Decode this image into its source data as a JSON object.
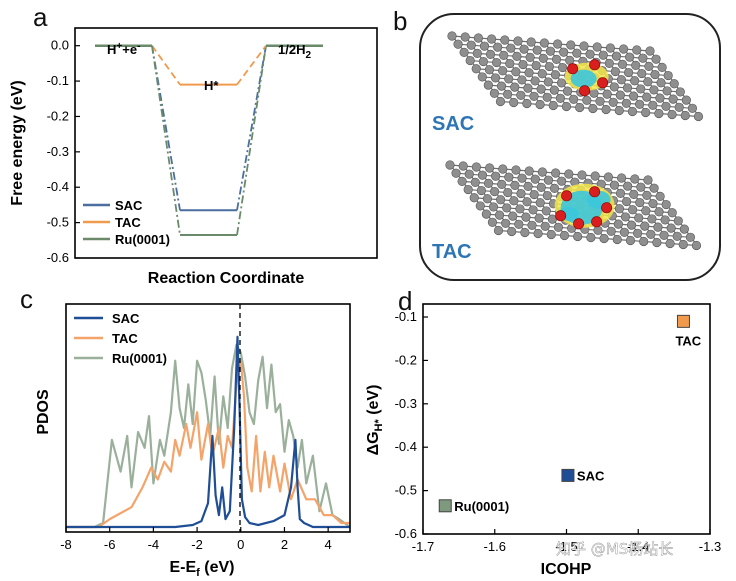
{
  "panels": {
    "a": "a",
    "b": "b",
    "c": "c",
    "d": "d"
  },
  "watermark": "知乎 @MS杨站长",
  "colors": {
    "SAC": "#4a6f9e",
    "TAC": "#f09a4e",
    "Ru": "#6a8a6a",
    "Ru_marker": "#7f997f",
    "SAC_pdos": "#1f4e96",
    "TAC_pdos": "#f4a46a",
    "Ru_pdos": "#9bb09b"
  },
  "chart_data": [
    {
      "id": "a",
      "type": "line",
      "ylabel": "Free energy (eV)",
      "xlabel": "Reaction Coordinate",
      "ylim": [
        -0.6,
        0.05
      ],
      "yticks": [
        0.0,
        -0.1,
        -0.2,
        -0.3,
        -0.4,
        -0.5,
        -0.6
      ],
      "ytick_labels": [
        "0.0",
        "-0.1",
        "-0.2",
        "-0.3",
        "-0.4",
        "-0.5",
        "-0.6"
      ],
      "states": [
        "H⁺+e⁻",
        "H*",
        "1/2H₂"
      ],
      "state_labels": {
        "start_main": "H",
        "start_sup1": "+",
        "start_mid": "+e",
        "start_sup2": "-",
        "mid": "H*",
        "end_main": "1/2H",
        "end_sub": "2"
      },
      "series": [
        {
          "name": "SAC",
          "values": [
            0.0,
            -0.465,
            0.0
          ]
        },
        {
          "name": "TAC",
          "values": [
            0.0,
            -0.11,
            0.0
          ]
        },
        {
          "name": "Ru(0001)",
          "values": [
            0.0,
            -0.535,
            0.0
          ]
        }
      ],
      "legend": [
        "SAC",
        "TAC",
        "Ru(0001)"
      ],
      "legend_position": "bottom-left"
    },
    {
      "id": "c",
      "type": "line",
      "xlabel_main": "E-E",
      "xlabel_sub": "f",
      "xlabel_unit": " (eV)",
      "ylabel": "PDOS",
      "xlim": [
        -8,
        5
      ],
      "xticks": [
        -8,
        -6,
        -4,
        -2,
        0,
        2,
        4
      ],
      "xtick_labels": [
        "-8",
        "-6",
        "-4",
        "-2",
        "0",
        "2",
        "4"
      ],
      "series": [
        {
          "name": "SAC",
          "x": [
            -8,
            -3,
            -2.2,
            -1.8,
            -1.5,
            -1.3,
            -1.15,
            -1.0,
            -0.85,
            -0.7,
            -0.5,
            -0.3,
            -0.15,
            -0.05,
            0.05,
            0.2,
            0.4,
            0.8,
            1.5,
            2.0,
            2.3,
            2.5,
            2.6,
            2.7,
            2.9,
            3.3,
            5
          ],
          "y": [
            0,
            0,
            0.01,
            0.03,
            0.12,
            0.46,
            0.16,
            0.06,
            0.2,
            0.04,
            0.08,
            0.5,
            0.96,
            0.58,
            0.14,
            0.05,
            0.02,
            0.01,
            0.03,
            0.06,
            0.2,
            0.44,
            0.2,
            0.04,
            0.02,
            0,
            0
          ]
        },
        {
          "name": "TAC",
          "x": [
            -8,
            -6.5,
            -6,
            -5,
            -4.5,
            -4.1,
            -3.8,
            -3.5,
            -3.2,
            -3.0,
            -2.8,
            -2.5,
            -2.3,
            -2.0,
            -1.8,
            -1.5,
            -1.3,
            -1.0,
            -0.8,
            -0.6,
            -0.4,
            -0.2,
            0.0,
            0.15,
            0.3,
            0.5,
            0.7,
            0.9,
            1.1,
            1.3,
            1.5,
            1.8,
            2.0,
            2.3,
            2.6,
            3.0,
            3.4,
            3.8,
            4.2,
            4.6,
            5
          ],
          "y": [
            0,
            0,
            0.04,
            0.1,
            0.2,
            0.3,
            0.24,
            0.33,
            0.28,
            0.44,
            0.36,
            0.52,
            0.4,
            0.58,
            0.34,
            0.52,
            0.36,
            0.5,
            0.3,
            0.46,
            0.4,
            0.72,
            0.84,
            0.66,
            0.3,
            0.18,
            0.46,
            0.18,
            0.38,
            0.2,
            0.36,
            0.18,
            0.32,
            0.14,
            0.24,
            0.14,
            0.14,
            0.06,
            0.06,
            0.02,
            0.02
          ]
        },
        {
          "name": "Ru(0001)",
          "x": [
            -8,
            -6.7,
            -6.3,
            -5.9,
            -5.5,
            -5.2,
            -5.0,
            -4.7,
            -4.4,
            -4.2,
            -4.0,
            -3.7,
            -3.5,
            -3.2,
            -3.0,
            -2.8,
            -2.6,
            -2.4,
            -2.2,
            -2.0,
            -1.8,
            -1.6,
            -1.4,
            -1.2,
            -1.0,
            -0.8,
            -0.6,
            -0.4,
            -0.2,
            0.0,
            0.2,
            0.4,
            0.6,
            0.8,
            1.0,
            1.2,
            1.4,
            1.6,
            1.8,
            2.0,
            2.2,
            2.4,
            2.6,
            2.8,
            3.0,
            3.3,
            3.6,
            3.9,
            4.2,
            4.5,
            5
          ],
          "y": [
            0,
            0,
            0.02,
            0.44,
            0.28,
            0.46,
            0.2,
            0.48,
            0.4,
            0.56,
            0.22,
            0.44,
            0.36,
            0.58,
            0.84,
            0.6,
            0.5,
            0.72,
            0.52,
            0.84,
            0.78,
            0.64,
            0.46,
            0.76,
            0.42,
            0.66,
            0.5,
            0.8,
            0.92,
            0.88,
            0.76,
            0.58,
            0.52,
            0.74,
            0.86,
            0.6,
            0.82,
            0.58,
            0.62,
            0.38,
            0.54,
            0.46,
            0.3,
            0.44,
            0.22,
            0.36,
            0.08,
            0.22,
            0.06,
            0.04,
            0.0
          ]
        }
      ],
      "fermi_line_x": 0,
      "legend": [
        "SAC",
        "TAC",
        "Ru(0001)"
      ],
      "legend_position": "top-left"
    },
    {
      "id": "d",
      "type": "scatter",
      "xlabel": "ICOHP",
      "ylabel_main": "ΔG",
      "ylabel_sub": "H*",
      "ylabel_unit": " (eV)",
      "xlim": [
        -1.7,
        -1.3
      ],
      "ylim": [
        -0.6,
        -0.07
      ],
      "xticks": [
        -1.7,
        -1.6,
        -1.5,
        -1.4,
        -1.3
      ],
      "xtick_labels": [
        "-1.7",
        "-1.6",
        "-1.5",
        "-1.4",
        "-1.3"
      ],
      "yticks": [
        -0.1,
        -0.2,
        -0.3,
        -0.4,
        -0.5,
        -0.6
      ],
      "ytick_labels": [
        "-0.1",
        "-0.2",
        "-0.3",
        "-0.4",
        "-0.5",
        "-0.6"
      ],
      "points": [
        {
          "name": "TAC",
          "x": -1.337,
          "y": -0.11
        },
        {
          "name": "SAC",
          "x": -1.498,
          "y": -0.465
        },
        {
          "name": "Ru(0001)",
          "x": -1.669,
          "y": -0.535
        }
      ]
    }
  ],
  "structure_panel": {
    "labels": [
      "SAC",
      "TAC"
    ]
  }
}
